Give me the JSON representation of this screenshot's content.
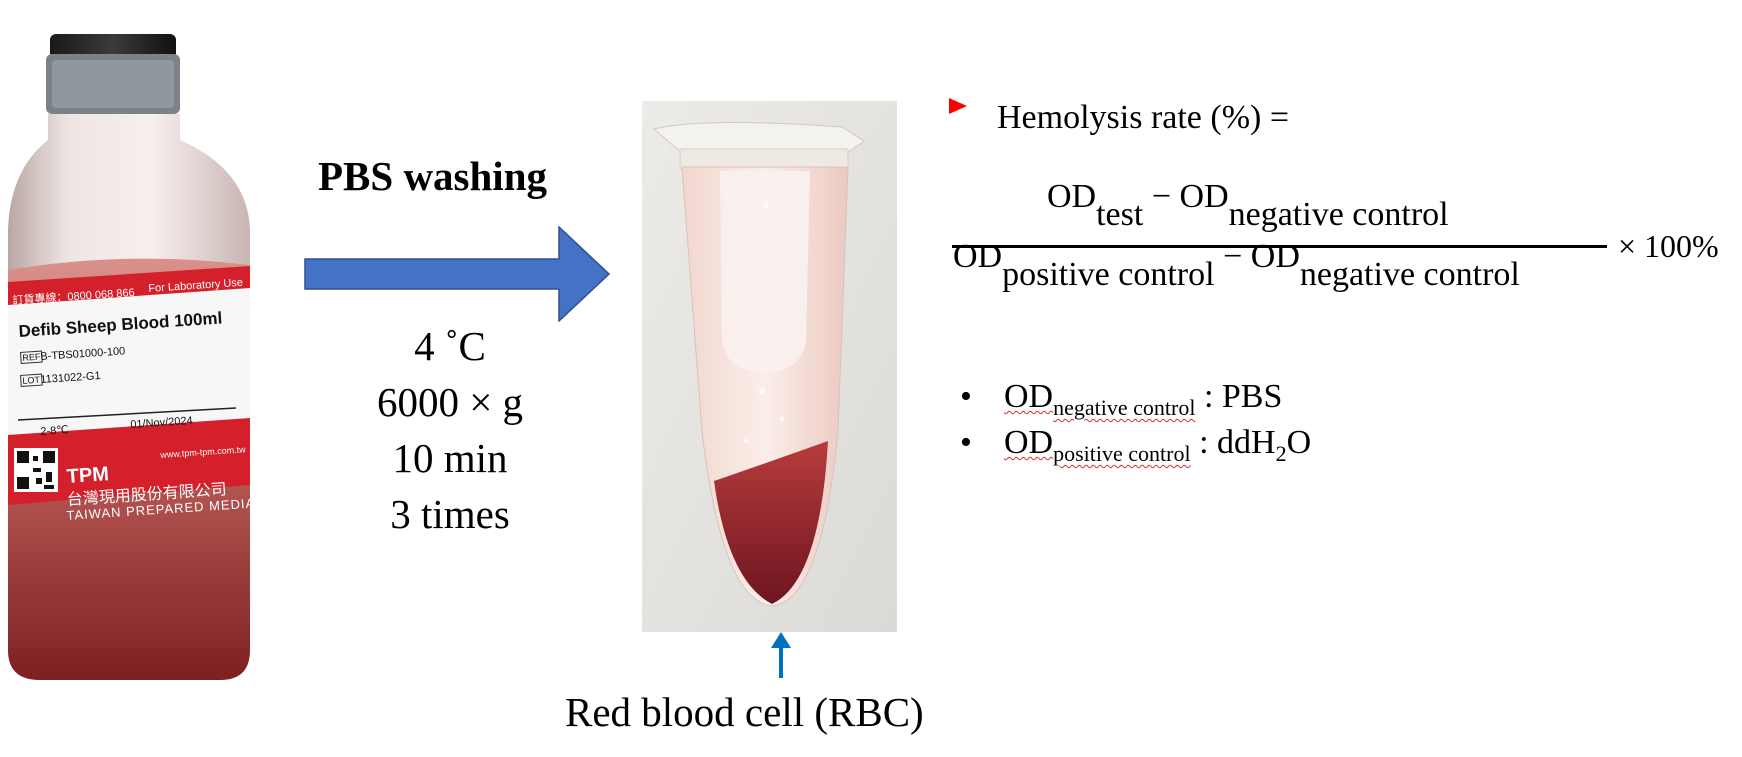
{
  "bottle": {
    "hotline": "訂貨專線：0800 068 866",
    "for_lab": "For Laboratory Use",
    "product": "Defib Sheep Blood 100ml",
    "ref_tag": "REF",
    "ref_value": "B-TBS01000-100",
    "lot_tag": "LOT",
    "lot_value": "1131022-G1",
    "temp": "2-8℃",
    "expiry": "01/Nov/2024",
    "website": "www.tpm-tpm.com.tw",
    "brand": "TPM",
    "company_cn": "台灣現用股份有限公司",
    "company_en": "TAIWAN PREPARED MEDIA"
  },
  "process": {
    "title": "PBS washing",
    "conditions": [
      "4 ˚C",
      "6000 × g",
      "10 min",
      "3 times"
    ]
  },
  "tube": {
    "caption": "Red blood cell (RBC)"
  },
  "formula": {
    "lead": "Hemolysis rate (%) =",
    "od": "OD",
    "minus": "−",
    "test": "test",
    "neg": "negative control",
    "pos": "positive control",
    "times": "× 100%"
  },
  "definitions": {
    "neg_value": ": PBS",
    "pos_value_prefix": ": ddH",
    "pos_value_sub": "2",
    "pos_value_suffix": "O"
  },
  "colors": {
    "arrow": "#4472c4",
    "marker": "#ff0000",
    "up_arrow": "#0070c0",
    "label_red": "#d3202a"
  }
}
